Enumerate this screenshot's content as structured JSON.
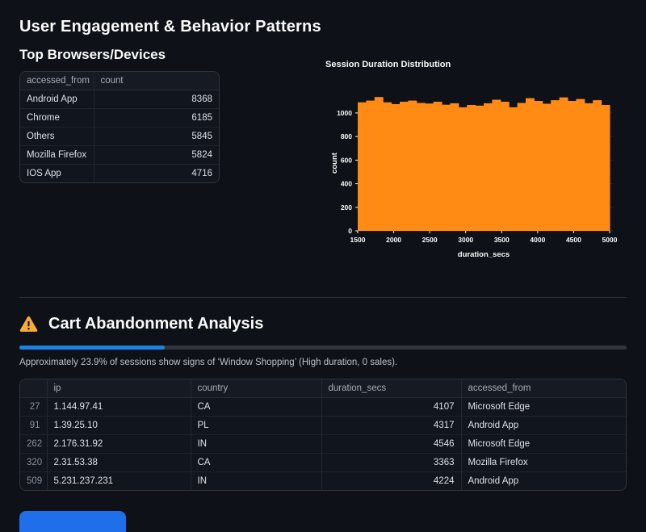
{
  "header": {
    "title": "User Engagement & Behavior Patterns"
  },
  "browsers": {
    "title": "Top Browsers/Devices",
    "table": {
      "headers": [
        "accessed_from",
        "count"
      ],
      "rows": [
        [
          "Android App",
          "8368"
        ],
        [
          "Chrome",
          "6185"
        ],
        [
          "Others",
          "5845"
        ],
        [
          "Mozilla Firefox",
          "5824"
        ],
        [
          "IOS App",
          "4716"
        ]
      ]
    }
  },
  "chart_data": {
    "type": "bar",
    "title": "Session Duration Distribution",
    "xlabel": "duration_secs",
    "ylabel": "count",
    "bin_start": 1500,
    "bin_end": 5000,
    "bins": 30,
    "values": [
      1090,
      1105,
      1135,
      1090,
      1075,
      1095,
      1105,
      1085,
      1080,
      1095,
      1070,
      1082,
      1048,
      1068,
      1062,
      1082,
      1112,
      1095,
      1048,
      1085,
      1125,
      1102,
      1078,
      1108,
      1132,
      1102,
      1118,
      1082,
      1108,
      1068
    ],
    "x_ticks": [
      1500,
      2000,
      2500,
      3000,
      3500,
      4000,
      4500,
      5000
    ],
    "y_ticks": [
      0,
      200,
      400,
      600,
      800,
      1000
    ],
    "ylim": [
      0,
      1150
    ],
    "grid": false,
    "legend_position": "none"
  },
  "cart": {
    "title": "Cart Abandonment Analysis",
    "progress_percent": 23.9,
    "caption": "Approximately 23.9% of sessions show signs of ‘Window Shopping’ (High duration, 0 sales).",
    "table": {
      "headers": [
        "",
        "ip",
        "country",
        "duration_secs",
        "accessed_from"
      ],
      "rows": [
        [
          "27",
          "1.144.97.41",
          "CA",
          "4107",
          "Microsoft Edge"
        ],
        [
          "91",
          "1.39.25.10",
          "PL",
          "4317",
          "Android App"
        ],
        [
          "262",
          "2.176.31.92",
          "IN",
          "4546",
          "Microsoft Edge"
        ],
        [
          "320",
          "2.31.53.38",
          "CA",
          "3363",
          "Mozilla Firefox"
        ],
        [
          "509",
          "5.231.237.231",
          "IN",
          "4224",
          "Android App"
        ]
      ]
    }
  },
  "colors": {
    "background": "#0e1117",
    "bar_orange": "#ff8b15",
    "progress_blue": "#1c83e1",
    "partial_element_blue": "#1f6feb",
    "warning_yellow": "#f9ad37",
    "grid_line": "#232832"
  }
}
